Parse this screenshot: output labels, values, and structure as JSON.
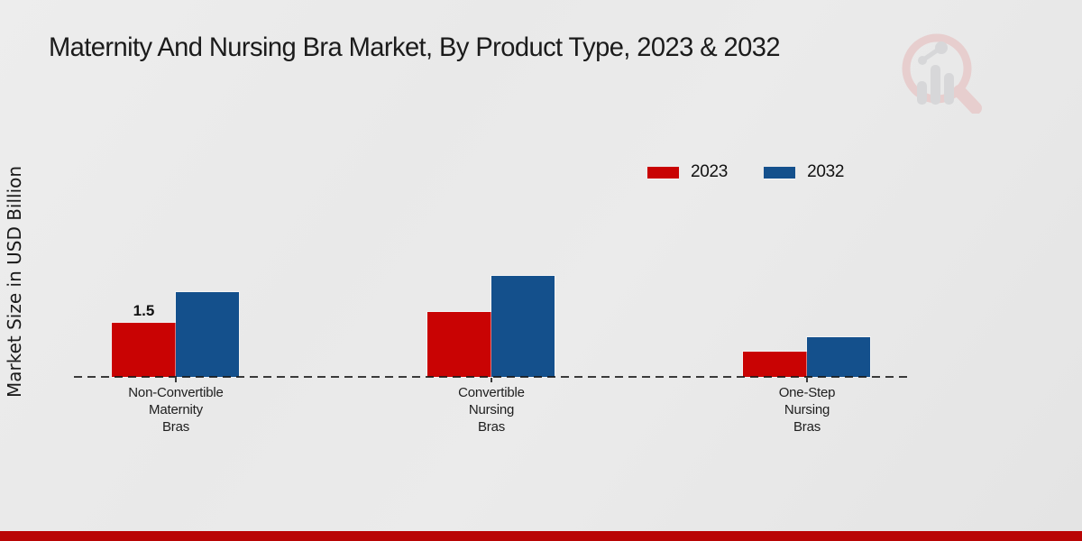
{
  "title": "Maternity And Nursing Bra Market, By Product Type, 2023 & 2032",
  "y_axis_label": "Market Size in USD Billion",
  "legend": [
    {
      "label": "2023",
      "color": "#c90303"
    },
    {
      "label": "2032",
      "color": "#14508c"
    }
  ],
  "chart_data": {
    "type": "bar",
    "title": "Maternity And Nursing Bra Market, By Product Type, 2023 & 2032",
    "ylabel": "Market Size in USD Billion",
    "xlabel": "",
    "categories": [
      "Non-Convertible\nMaternity\nBras",
      "Convertible\nNursing\nBras",
      "One-Step\nNursing\nBras"
    ],
    "series": [
      {
        "name": "2023",
        "color": "#c90303",
        "values": [
          1.5,
          1.8,
          0.7
        ]
      },
      {
        "name": "2032",
        "color": "#14508c",
        "values": [
          2.35,
          2.8,
          1.1
        ]
      }
    ],
    "value_labels": [
      {
        "series_index": 0,
        "category_index": 0,
        "text": "1.5"
      }
    ],
    "ylim": [
      0,
      3.2
    ],
    "grid": false,
    "baseline_style": "dashed",
    "legend_position": "top-right"
  },
  "colors": {
    "background": "#e9e9e9",
    "footer_bar": "#b90505",
    "baseline": "#141414",
    "logo_ring": "#e7caca",
    "logo_bars": "#d4d5d7"
  },
  "branding": {
    "logo_name": "magnifier-bar-chart-watermark"
  }
}
